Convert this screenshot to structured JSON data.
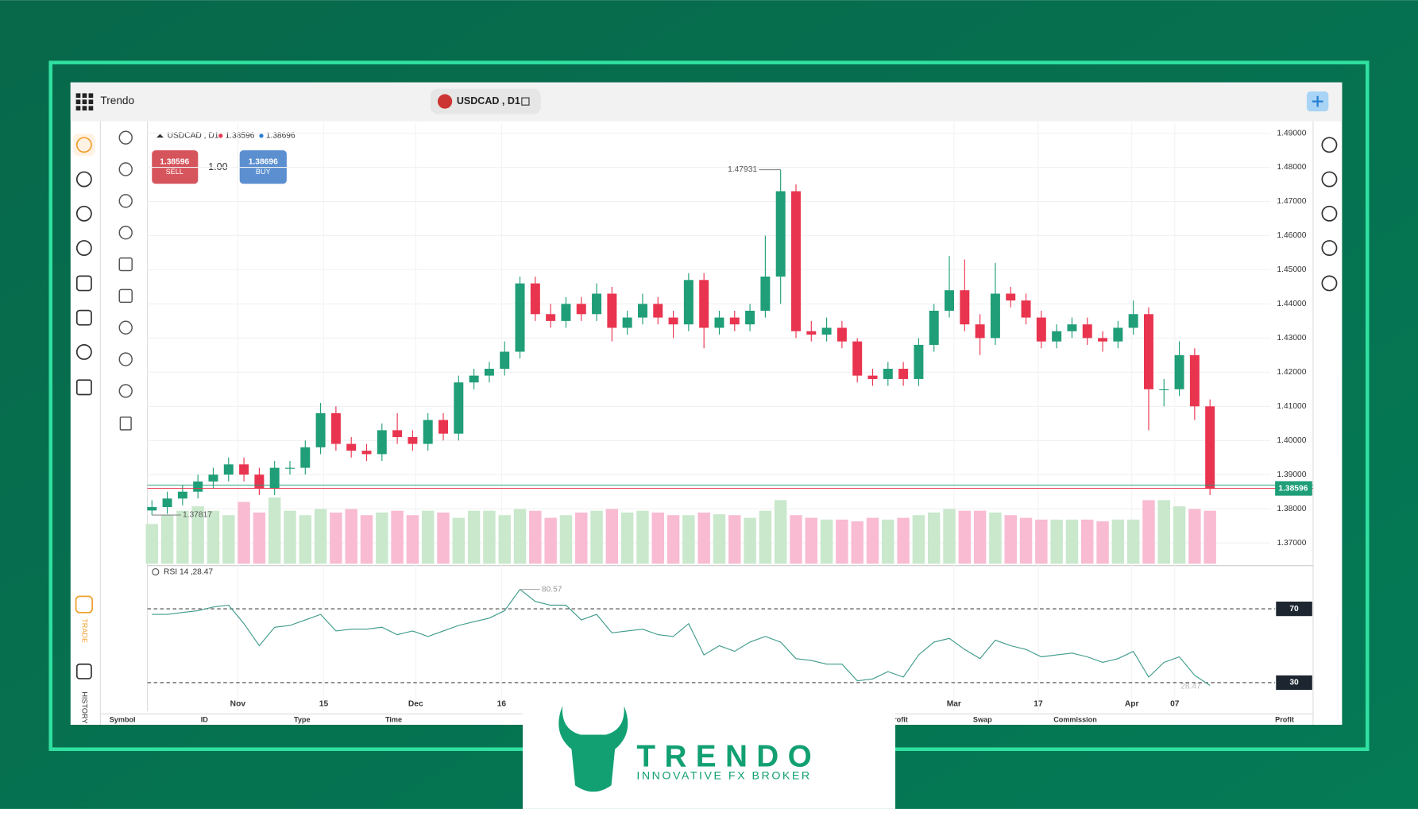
{
  "app": {
    "brand": "Trendo",
    "symbol": "USDCAD , D1",
    "lot": "1.00",
    "sell": "SELL",
    "buy": "BUY",
    "side_trade": "TRADE",
    "side_history": "HISTORY",
    "table_headers": [
      "Symbol",
      "ID",
      "Type",
      "Time",
      "Profit",
      "Swap",
      "Commission",
      "Profit"
    ],
    "logo": "TRENDO",
    "tagline": "INNOVATIVE FX BROKER"
  },
  "chart_data": [
    {
      "type": "candlestick",
      "bid": 1.38596,
      "ask": 1.38696,
      "open": [
        1.3795,
        1.3805,
        1.383,
        1.385,
        1.388,
        1.39,
        1.393,
        1.39,
        1.386,
        1.392,
        1.392,
        1.398,
        1.408,
        1.399,
        1.397,
        1.396,
        1.403,
        1.401,
        1.399,
        1.406,
        1.402,
        1.417,
        1.419,
        1.421,
        1.426,
        1.446,
        1.437,
        1.435,
        1.44,
        1.437,
        1.443,
        1.433,
        1.436,
        1.44,
        1.436,
        1.434,
        1.447,
        1.433,
        1.436,
        1.434,
        1.438,
        1.448,
        1.473,
        1.432,
        1.431,
        1.433,
        1.429,
        1.419,
        1.418,
        1.421,
        1.418,
        1.428,
        1.438,
        1.444,
        1.434,
        1.43,
        1.443,
        1.441,
        1.436,
        1.429,
        1.432,
        1.434,
        1.43,
        1.429,
        1.433,
        1.437,
        1.415,
        1.415,
        1.425,
        1.41
      ],
      "high": [
        1.3825,
        1.385,
        1.387,
        1.39,
        1.392,
        1.395,
        1.395,
        1.392,
        1.394,
        1.394,
        1.4,
        1.411,
        1.41,
        1.401,
        1.399,
        1.405,
        1.408,
        1.403,
        1.408,
        1.408,
        1.419,
        1.421,
        1.423,
        1.429,
        1.448,
        1.448,
        1.44,
        1.442,
        1.442,
        1.446,
        1.445,
        1.438,
        1.443,
        1.442,
        1.438,
        1.449,
        1.449,
        1.438,
        1.438,
        1.44,
        1.46,
        1.47931,
        1.475,
        1.435,
        1.436,
        1.435,
        1.43,
        1.421,
        1.423,
        1.423,
        1.43,
        1.44,
        1.454,
        1.453,
        1.437,
        1.452,
        1.445,
        1.443,
        1.438,
        1.434,
        1.436,
        1.436,
        1.432,
        1.435,
        1.441,
        1.439,
        1.418,
        1.429,
        1.427,
        1.412
      ],
      "low": [
        1.37817,
        1.3785,
        1.381,
        1.383,
        1.386,
        1.388,
        1.388,
        1.384,
        1.384,
        1.39,
        1.39,
        1.396,
        1.397,
        1.395,
        1.394,
        1.394,
        1.399,
        1.397,
        1.397,
        1.4,
        1.4,
        1.415,
        1.417,
        1.419,
        1.424,
        1.435,
        1.433,
        1.433,
        1.435,
        1.435,
        1.429,
        1.431,
        1.434,
        1.434,
        1.43,
        1.432,
        1.427,
        1.431,
        1.432,
        1.432,
        1.436,
        1.44,
        1.43,
        1.429,
        1.429,
        1.427,
        1.417,
        1.416,
        1.416,
        1.416,
        1.416,
        1.426,
        1.436,
        1.432,
        1.425,
        1.428,
        1.439,
        1.434,
        1.427,
        1.427,
        1.43,
        1.428,
        1.426,
        1.427,
        1.431,
        1.403,
        1.41,
        1.413,
        1.406,
        1.384
      ],
      "close": [
        1.3805,
        1.383,
        1.385,
        1.388,
        1.39,
        1.393,
        1.39,
        1.386,
        1.392,
        1.392,
        1.398,
        1.408,
        1.399,
        1.397,
        1.396,
        1.403,
        1.401,
        1.399,
        1.406,
        1.402,
        1.417,
        1.419,
        1.421,
        1.426,
        1.446,
        1.437,
        1.435,
        1.44,
        1.437,
        1.443,
        1.433,
        1.436,
        1.44,
        1.436,
        1.434,
        1.447,
        1.433,
        1.436,
        1.434,
        1.438,
        1.448,
        1.473,
        1.432,
        1.431,
        1.433,
        1.429,
        1.419,
        1.418,
        1.421,
        1.418,
        1.428,
        1.438,
        1.444,
        1.434,
        1.43,
        1.443,
        1.441,
        1.436,
        1.429,
        1.432,
        1.434,
        1.43,
        1.429,
        1.433,
        1.437,
        1.415,
        1.415,
        1.425,
        1.41,
        1.38596
      ],
      "volume": [
        45,
        55,
        60,
        65,
        60,
        55,
        70,
        58,
        75,
        60,
        55,
        62,
        58,
        62,
        55,
        58,
        60,
        55,
        60,
        58,
        52,
        60,
        60,
        55,
        62,
        60,
        52,
        55,
        58,
        60,
        62,
        58,
        60,
        58,
        55,
        55,
        58,
        56,
        55,
        52,
        60,
        72,
        55,
        52,
        50,
        50,
        48,
        52,
        50,
        52,
        55,
        58,
        62,
        60,
        60,
        58,
        55,
        52,
        50,
        50,
        50,
        50,
        48,
        50,
        50,
        72,
        72,
        65,
        62,
        60
      ],
      "up_color": "#1f9e78",
      "down_color": "#e9344f",
      "volume_up_color": "#c9e8cc",
      "volume_down_color": "#f8bbd2",
      "bid_color": "#e9344f",
      "ask_color": "#1f9e78",
      "ylim": [
        1.3639,
        1.4932
      ],
      "volume_lim": [
        0,
        90
      ],
      "yticks": [
        {
          "value": 1.37,
          "label": "1.37000"
        },
        {
          "value": 1.38,
          "label": "1.38000"
        },
        {
          "value": 1.39,
          "label": "1.39000"
        },
        {
          "value": 1.4,
          "label": "1.40000"
        },
        {
          "value": 1.41,
          "label": "1.41000"
        },
        {
          "value": 1.42,
          "label": "1.42000"
        },
        {
          "value": 1.43,
          "label": "1.43000"
        },
        {
          "value": 1.44,
          "label": "1.44000"
        },
        {
          "value": 1.45,
          "label": "1.45000"
        },
        {
          "value": 1.46,
          "label": "1.46000"
        },
        {
          "value": 1.47,
          "label": "1.47000"
        },
        {
          "value": 1.48,
          "label": "1.48000"
        },
        {
          "value": 1.49,
          "label": "1.49000"
        }
      ],
      "xticks": [
        {
          "value": 5.6,
          "label": "Nov"
        },
        {
          "value": 11.2,
          "label": "15"
        },
        {
          "value": 17.2,
          "label": "Dec"
        },
        {
          "value": 22.8,
          "label": "16"
        },
        {
          "value": 52.3,
          "label": "Mar"
        },
        {
          "value": 57.8,
          "label": "17"
        },
        {
          "value": 63.9,
          "label": "Apr"
        },
        {
          "value": 66.7,
          "label": "07"
        }
      ],
      "grid": true
    },
    {
      "type": "line",
      "title": "RSI 14 ,",
      "color": "#3e9a8c",
      "values": [
        67,
        67,
        68,
        69,
        71,
        72,
        62,
        50,
        60,
        61,
        64,
        67,
        58,
        59,
        59,
        60,
        56,
        58,
        55,
        58,
        61,
        63,
        65,
        69,
        80.57,
        74,
        72,
        72,
        64,
        67,
        57,
        58,
        59,
        56,
        55,
        62,
        45,
        50,
        47,
        52,
        55,
        52,
        43,
        42,
        40,
        40,
        31,
        32,
        36,
        33,
        45,
        52,
        54,
        48,
        43,
        53,
        50,
        48,
        44,
        45,
        46,
        44,
        41,
        43,
        47,
        33,
        41,
        44,
        34,
        28.47
      ],
      "ylim": [
        15,
        92
      ],
      "yticks": [
        70,
        30
      ]
    }
  ]
}
